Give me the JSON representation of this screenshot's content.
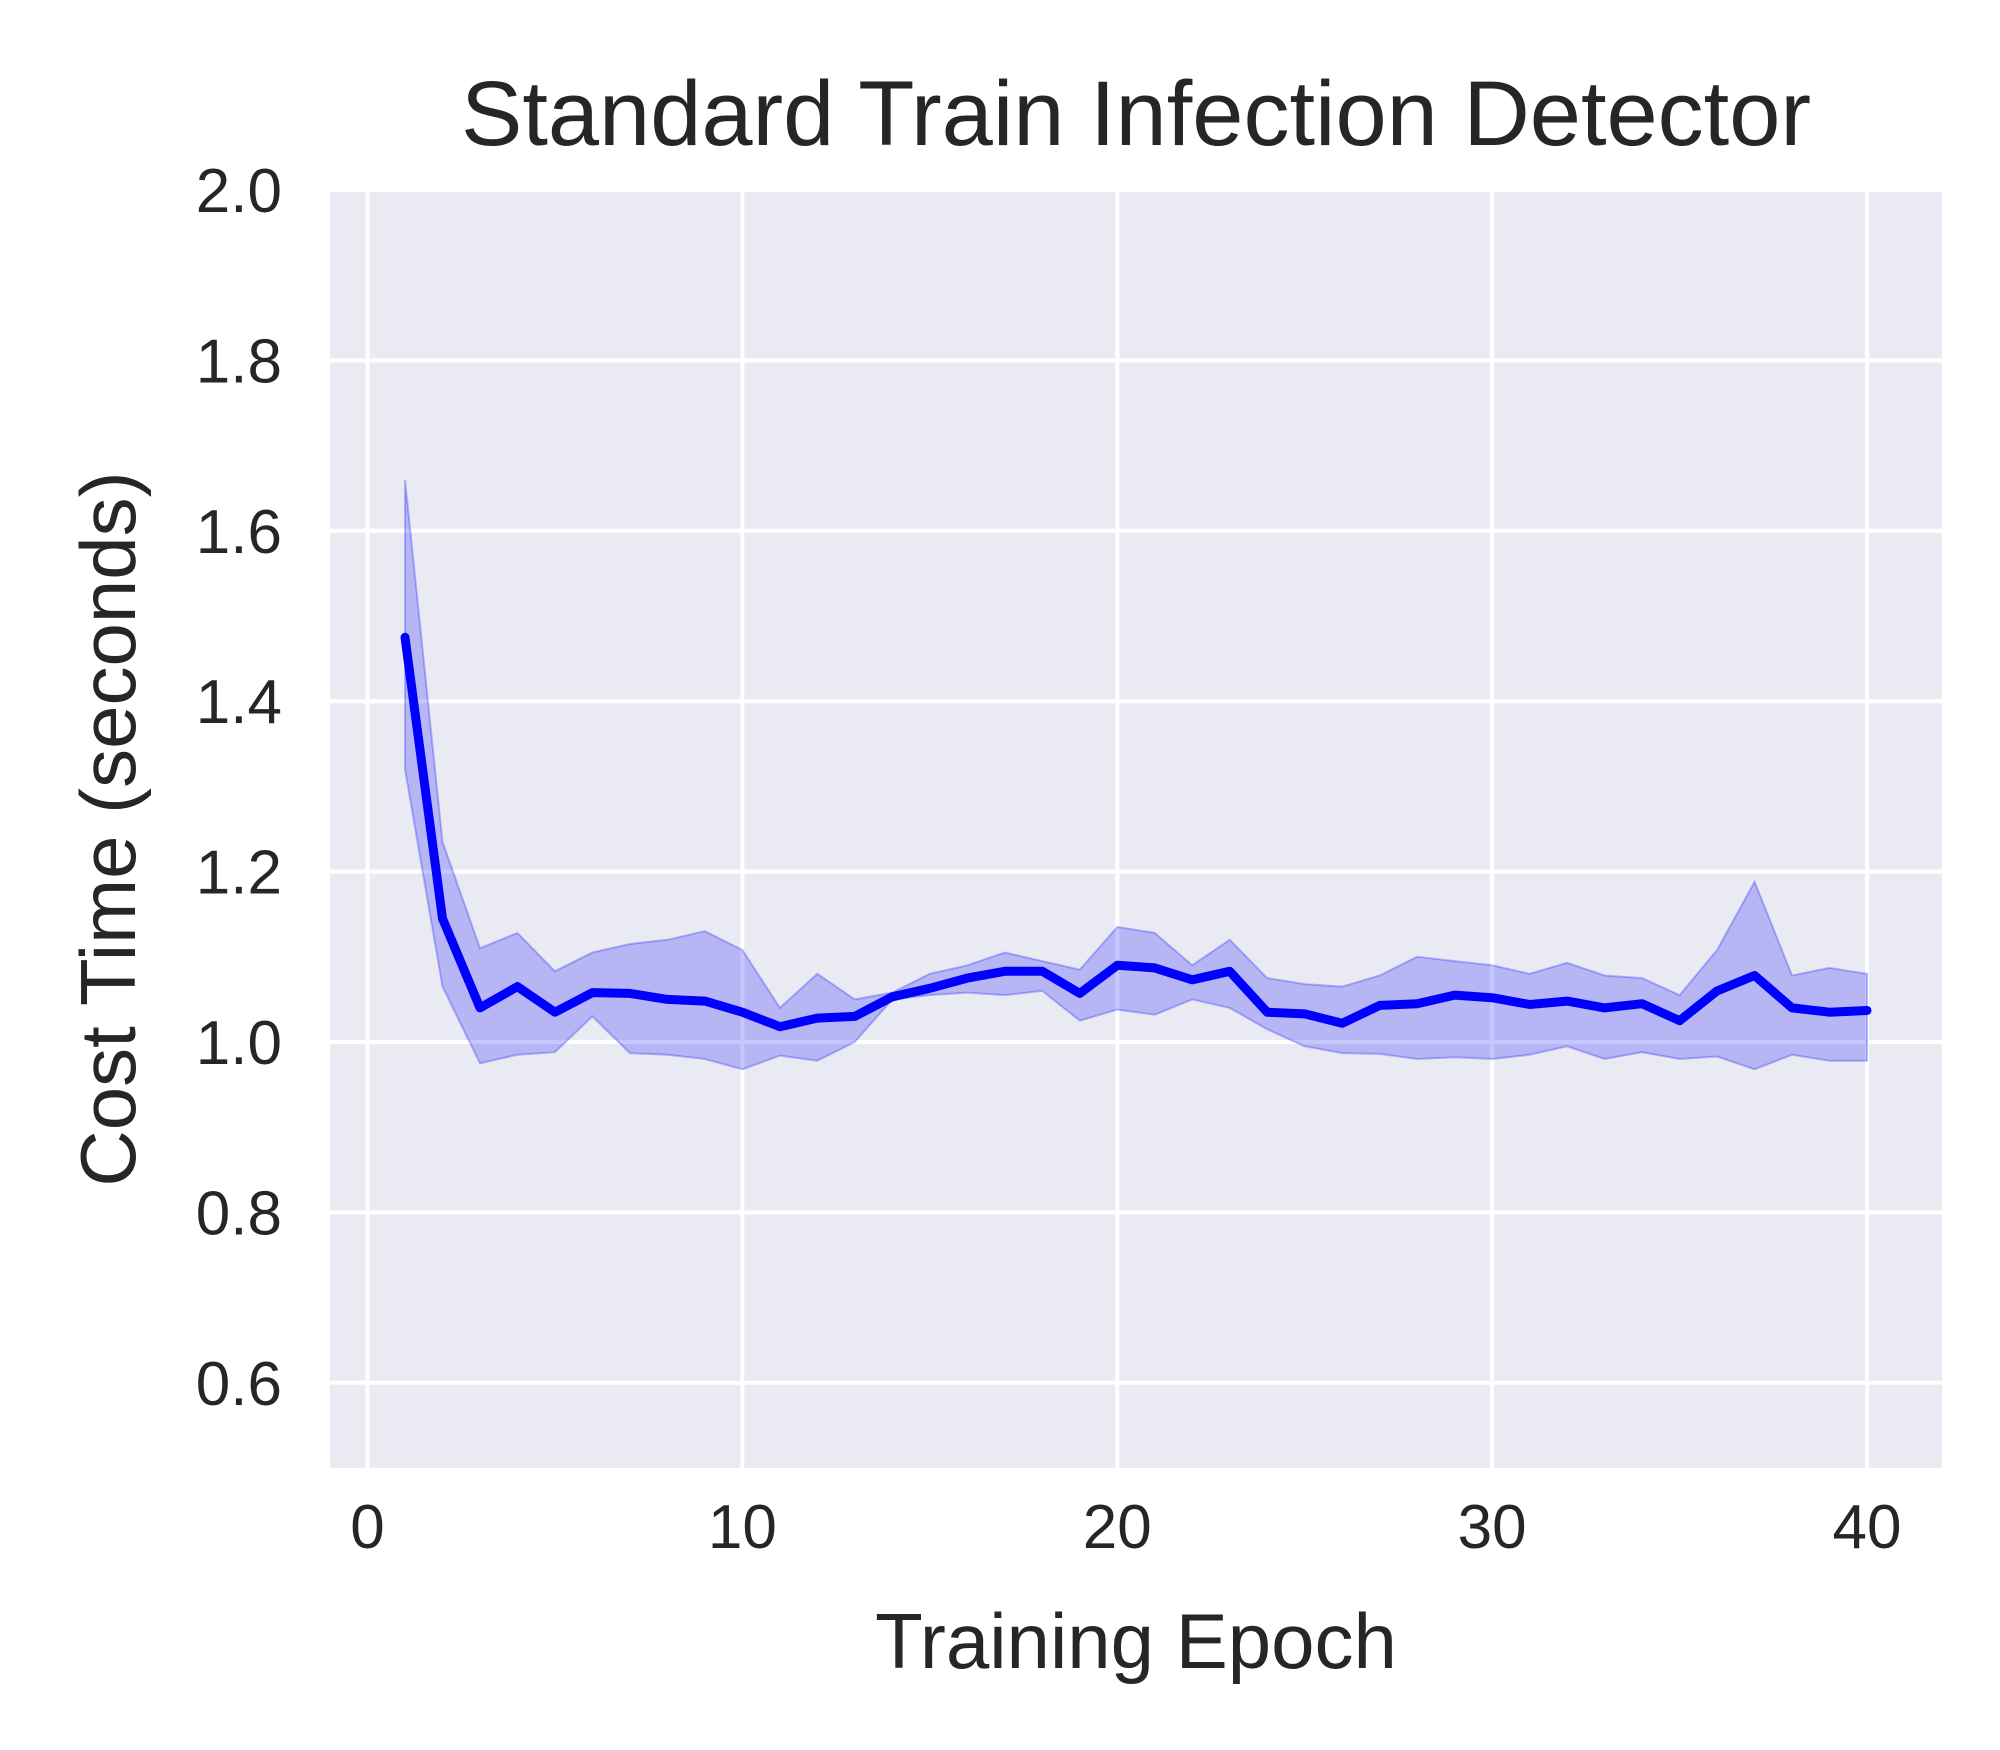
{
  "chart_data": {
    "type": "line",
    "title": "Standard Train Infection Detector",
    "xlabel": "Training Epoch",
    "ylabel": "Cost Time (seconds)",
    "xlim": [
      -1,
      42
    ],
    "ylim": [
      0.5,
      2.0
    ],
    "xticks": [
      0,
      10,
      20,
      30,
      40
    ],
    "xtick_labels": [
      "0",
      "10",
      "20",
      "30",
      "40"
    ],
    "yticks": [
      0.6,
      0.8,
      1.0,
      1.2,
      1.4,
      1.6,
      1.8,
      2.0
    ],
    "ytick_labels": [
      "0.6",
      "0.8",
      "1.0",
      "1.2",
      "1.4",
      "1.6",
      "1.8",
      "2.0"
    ],
    "grid": true,
    "legend": "none",
    "colors": {
      "line": "#0000ff",
      "band": "#0000ff",
      "plot_bg": "#eaeaf2",
      "grid": "#ffffff"
    },
    "series": [
      {
        "x": [
          1,
          2,
          3,
          4,
          5,
          6,
          7,
          8,
          9,
          10,
          11,
          12,
          13,
          14,
          15,
          16,
          17,
          18,
          19,
          20,
          21,
          22,
          23,
          24,
          25,
          26,
          27,
          28,
          29,
          30,
          31,
          32,
          33,
          34,
          35,
          36,
          37,
          38,
          39,
          40
        ],
        "values": [
          1.475,
          1.145,
          1.04,
          1.065,
          1.035,
          1.058,
          1.057,
          1.05,
          1.048,
          1.035,
          1.018,
          1.028,
          1.03,
          1.053,
          1.063,
          1.075,
          1.083,
          1.083,
          1.057,
          1.09,
          1.087,
          1.073,
          1.083,
          1.035,
          1.033,
          1.022,
          1.043,
          1.045,
          1.055,
          1.052,
          1.044,
          1.048,
          1.04,
          1.045,
          1.025,
          1.06,
          1.078,
          1.04,
          1.035,
          1.037
        ],
        "lower": [
          1.32,
          1.065,
          0.975,
          0.985,
          0.988,
          1.03,
          0.987,
          0.985,
          0.98,
          0.968,
          0.984,
          0.978,
          1.0,
          1.05,
          1.055,
          1.058,
          1.055,
          1.06,
          1.025,
          1.038,
          1.032,
          1.05,
          1.04,
          1.015,
          0.995,
          0.987,
          0.986,
          0.98,
          0.982,
          0.98,
          0.985,
          0.995,
          0.98,
          0.988,
          0.98,
          0.983,
          0.968,
          0.985,
          0.978,
          0.978
        ],
        "upper": [
          1.66,
          1.235,
          1.11,
          1.128,
          1.083,
          1.105,
          1.115,
          1.12,
          1.13,
          1.108,
          1.04,
          1.08,
          1.05,
          1.058,
          1.08,
          1.09,
          1.105,
          1.095,
          1.085,
          1.135,
          1.128,
          1.09,
          1.12,
          1.075,
          1.068,
          1.065,
          1.078,
          1.1,
          1.095,
          1.09,
          1.08,
          1.093,
          1.078,
          1.075,
          1.055,
          1.108,
          1.188,
          1.078,
          1.087,
          1.08
        ]
      }
    ]
  }
}
